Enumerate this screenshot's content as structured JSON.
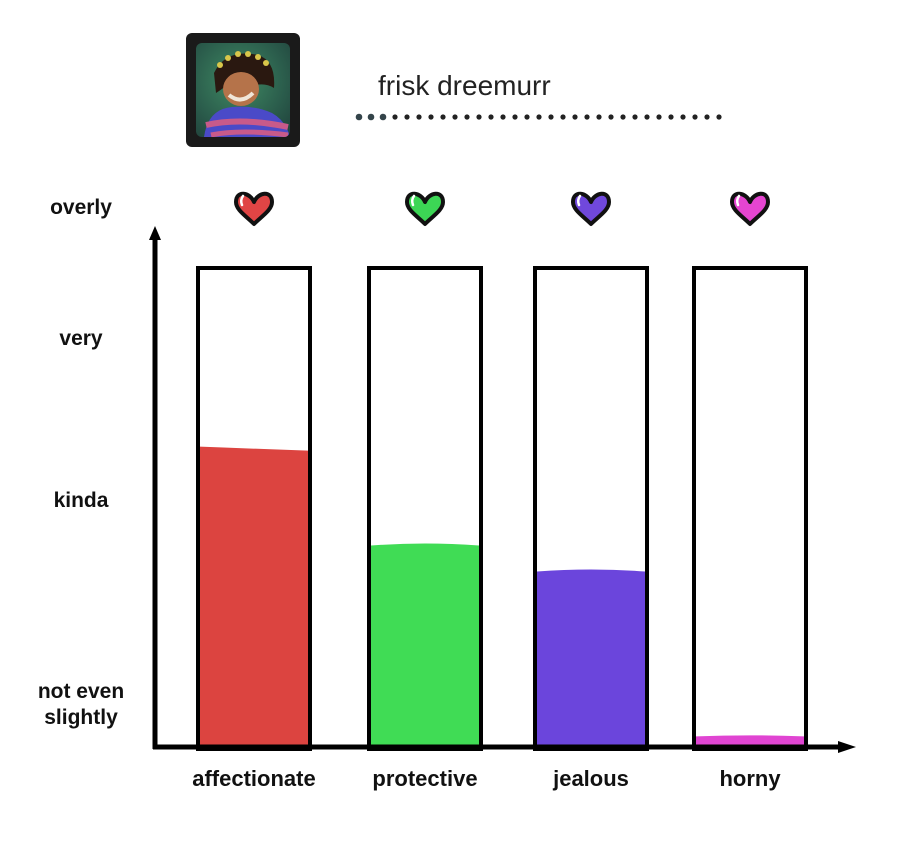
{
  "profile": {
    "name": "frisk dreemurr"
  },
  "chart_data": {
    "type": "bar",
    "categories": [
      "affectionate",
      "protective",
      "jealous",
      "horny"
    ],
    "values": [
      1.72,
      1.15,
      1.0,
      0.05
    ],
    "colors": [
      "#dc4440",
      "#40dc55",
      "#6b45dc",
      "#e045d2"
    ],
    "heart_colors": [
      "#e04545",
      "#3cd655",
      "#7048dc",
      "#e545d0"
    ],
    "y_tick_labels": [
      "not even slightly",
      "kinda",
      "very",
      "overly"
    ],
    "y_tick_label_lines": [
      [
        "not even",
        "slightly"
      ],
      [
        "kinda"
      ],
      [
        "very"
      ],
      [
        "overly"
      ]
    ],
    "y_tick_values": [
      0,
      1,
      2,
      3
    ],
    "ylim": [
      0,
      2.75
    ],
    "grid": false,
    "legend": "none"
  }
}
